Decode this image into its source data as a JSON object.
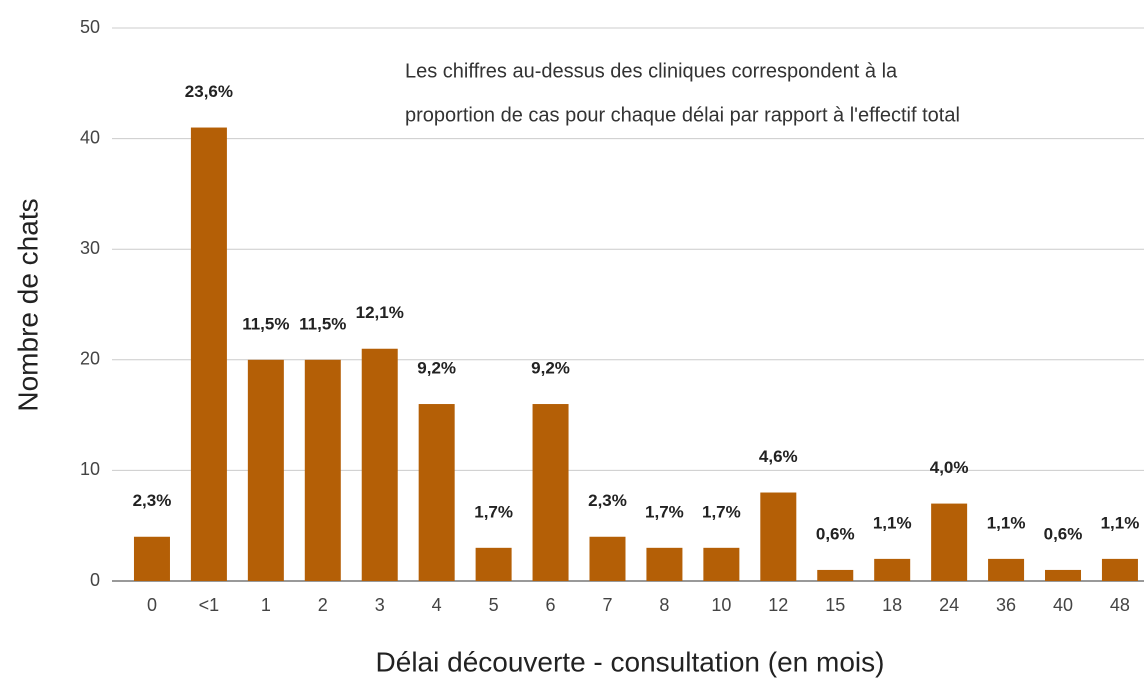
{
  "chart_data": {
    "type": "bar",
    "annotation": [
      "Les chiffres au-dessus des cliniques correspondent à la",
      "proportion de cas pour chaque délai par rapport à l'effectif total"
    ],
    "x_label": "Délai découverte - consultation (en mois)",
    "y_label": "Nombre de chats",
    "categories": [
      "0",
      "<1",
      "1",
      "2",
      "3",
      "4",
      "5",
      "6",
      "7",
      "8",
      "10",
      "12",
      "15",
      "18",
      "24",
      "36",
      "40",
      "48"
    ],
    "values": [
      4,
      41,
      20,
      20,
      21,
      16,
      3,
      16,
      4,
      3,
      3,
      8,
      1,
      2,
      7,
      2,
      1,
      2
    ],
    "value_labels": [
      "2,3%",
      "23,6%",
      "11,5%",
      "11,5%",
      "12,1%",
      "9,2%",
      "1,7%",
      "9,2%",
      "2,3%",
      "1,7%",
      "1,7%",
      "4,6%",
      "0,6%",
      "1,1%",
      "4,0%",
      "1,1%",
      "0,6%",
      "1,1%"
    ],
    "color": "#b45f06",
    "ylim": [
      0,
      50
    ],
    "yticks": [
      0,
      10,
      20,
      30,
      40,
      50
    ],
    "grid": true
  }
}
